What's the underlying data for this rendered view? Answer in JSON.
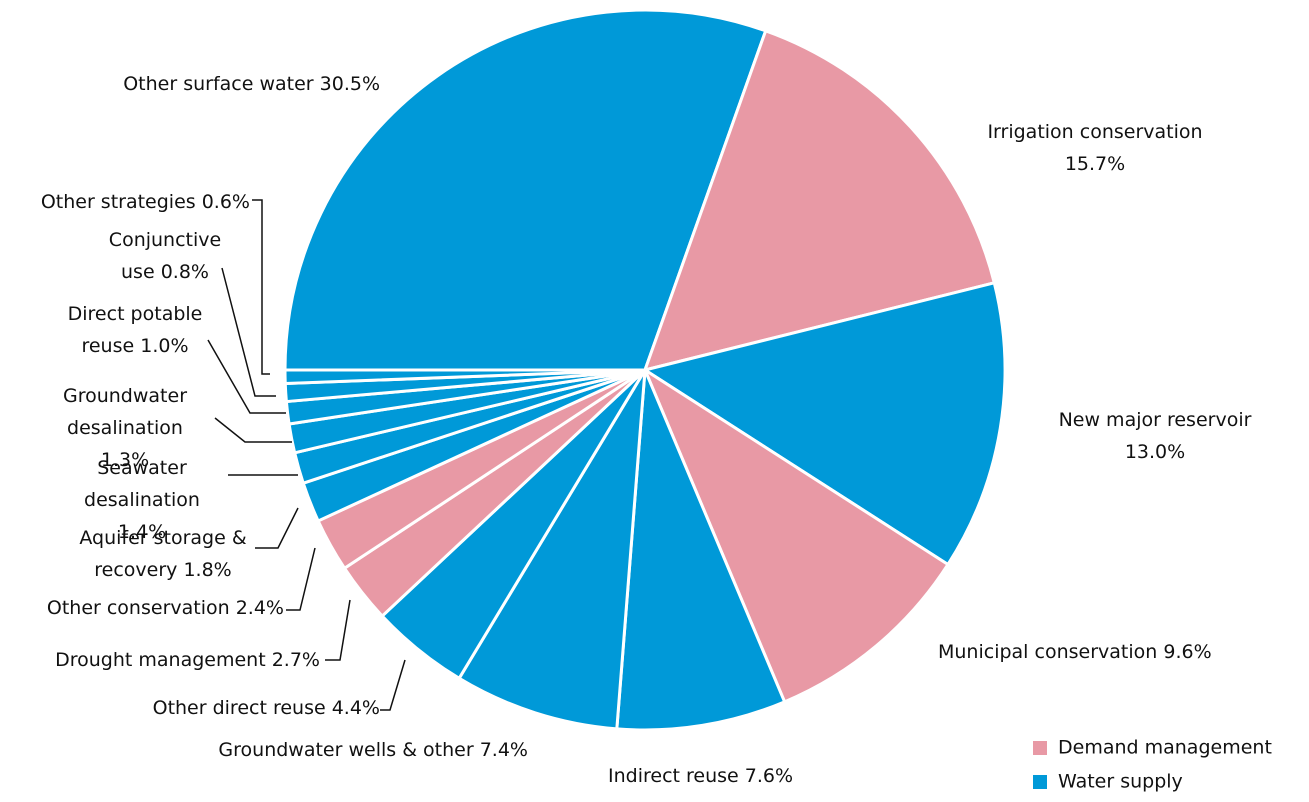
{
  "chart_data": {
    "type": "pie",
    "categories": [
      "Other surface water",
      "Irrigation conservation",
      "New major reservoir",
      "Municipal conservation",
      "Indirect reuse",
      "Groundwater wells & other",
      "Other direct reuse",
      "Drought management",
      "Other conservation",
      "Aquifer storage & recovery",
      "Seawater desalination",
      "Groundwater desalination",
      "Direct potable reuse",
      "Conjunctive use",
      "Other strategies"
    ],
    "values": [
      30.5,
      15.7,
      13.0,
      9.6,
      7.6,
      7.4,
      4.4,
      2.7,
      2.4,
      1.8,
      1.4,
      1.3,
      1.0,
      0.8,
      0.6
    ],
    "value_labels": [
      "30.5%",
      "15.7%",
      "13.0%",
      "9.6%",
      "7.6%",
      "7.4%",
      "4.4%",
      "2.7%",
      "2.4%",
      "1.8%",
      "1.4%",
      "1.3%",
      "1.0%",
      "0.8%",
      "0.6%"
    ],
    "colors": [
      "#0099d8",
      "#e899a5",
      "#0099d8",
      "#e899a5",
      "#0099d8",
      "#0099d8",
      "#0099d8",
      "#e899a5",
      "#e899a5",
      "#0099d8",
      "#0099d8",
      "#0099d8",
      "#0099d8",
      "#0099d8",
      "#0099d8"
    ],
    "legend": [
      {
        "name": "Demand management",
        "color": "#e899a5"
      },
      {
        "name": "Water supply",
        "color": "#0099d8"
      }
    ]
  }
}
